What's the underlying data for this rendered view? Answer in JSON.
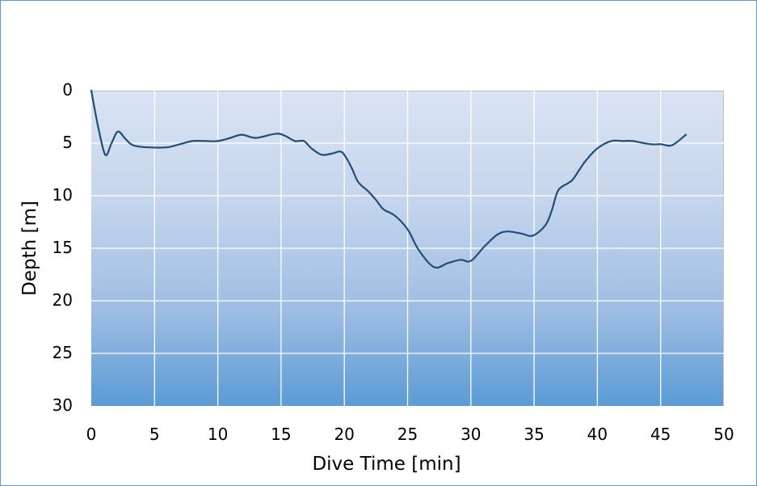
{
  "chart_data": {
    "type": "line",
    "title": "",
    "xlabel": "Dive Time [min]",
    "ylabel": "Depth [m]",
    "xlim": [
      0,
      50
    ],
    "ylim": [
      0,
      30
    ],
    "y_inverted": true,
    "grid": true,
    "legend": null,
    "x_ticks": [
      "0",
      "5",
      "10",
      "15",
      "20",
      "25",
      "30",
      "35",
      "40",
      "45",
      "50"
    ],
    "y_ticks": [
      "0",
      "5",
      "10",
      "15",
      "20",
      "25",
      "30"
    ],
    "series": [
      {
        "name": "Depth",
        "color": "#1f4e79",
        "x": [
          0,
          0.5,
          1.1,
          1.6,
          2.1,
          2.7,
          3.3,
          4.5,
          6,
          7,
          8,
          9,
          10,
          11,
          11.9,
          13.0,
          14.6,
          15.3,
          16.1,
          16.8,
          17.4,
          18.2,
          19.0,
          19.7,
          20.1,
          20.6,
          21.1,
          21.9,
          22.5,
          23.1,
          24.0,
          25.0,
          25.9,
          27.1,
          28.2,
          29.2,
          30.0,
          31.1,
          32.1,
          32.9,
          34.0,
          34.9,
          35.9,
          36.4,
          36.9,
          37.7,
          38.1,
          39.0,
          40.0,
          41.1,
          42.0,
          42.8,
          44.2,
          45.0,
          45.9,
          47.0
        ],
        "y": [
          0,
          3.2,
          6.1,
          5.0,
          3.9,
          4.6,
          5.2,
          5.4,
          5.4,
          5.1,
          4.8,
          4.8,
          4.8,
          4.5,
          4.2,
          4.5,
          4.1,
          4.3,
          4.8,
          4.8,
          5.5,
          6.1,
          6.0,
          5.8,
          6.3,
          7.4,
          8.7,
          9.6,
          10.4,
          11.3,
          11.9,
          13.2,
          15.2,
          16.8,
          16.4,
          16.1,
          16.2,
          14.8,
          13.7,
          13.4,
          13.6,
          13.8,
          12.8,
          11.4,
          9.5,
          8.8,
          8.4,
          6.8,
          5.5,
          4.8,
          4.8,
          4.8,
          5.1,
          5.1,
          5.2,
          4.2
        ]
      }
    ]
  },
  "plot": {
    "background_top": "#dae3f3",
    "background_bottom": "#5b9bd5",
    "gridline_color": "#ffffff",
    "frame_border_color": "#5b9bd5"
  }
}
